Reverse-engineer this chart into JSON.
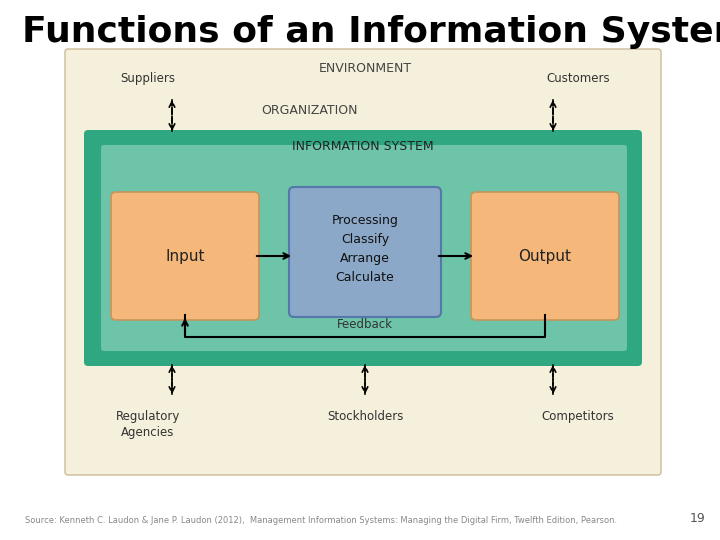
{
  "title": "Functions of an Information System",
  "title_fontsize": 26,
  "title_fontweight": "bold",
  "source_text": "Source: Kenneth C. Laudon & Jane P. Laudon (2012),  Management Information Systems: Managing the Digital Firm, Twelfth Edition, Pearson.",
  "page_number": "19",
  "bg_color": "#FFFFFF",
  "env_bg": "#F5F0DC",
  "org_label": "ORGANIZATION",
  "env_label": "ENVIRONMENT",
  "is_label": "INFORMATION SYSTEM",
  "is_outer_bg": "#2FA882",
  "is_inner_bg": "#6DC4A8",
  "input_label": "Input",
  "output_label": "Output",
  "box_orange": "#F5B87A",
  "box_orange_edge": "#C8955A",
  "processing_label": "Processing\nClassify\nArrange\nCalculate",
  "processing_bg": "#8BA8C8",
  "processing_edge": "#5577AA",
  "feedback_label": "Feedback",
  "suppliers_label": "Suppliers",
  "customers_label": "Customers",
  "reg_label": "Regulatory\nAgencies",
  "stock_label": "Stockholders",
  "comp_label": "Competitors"
}
